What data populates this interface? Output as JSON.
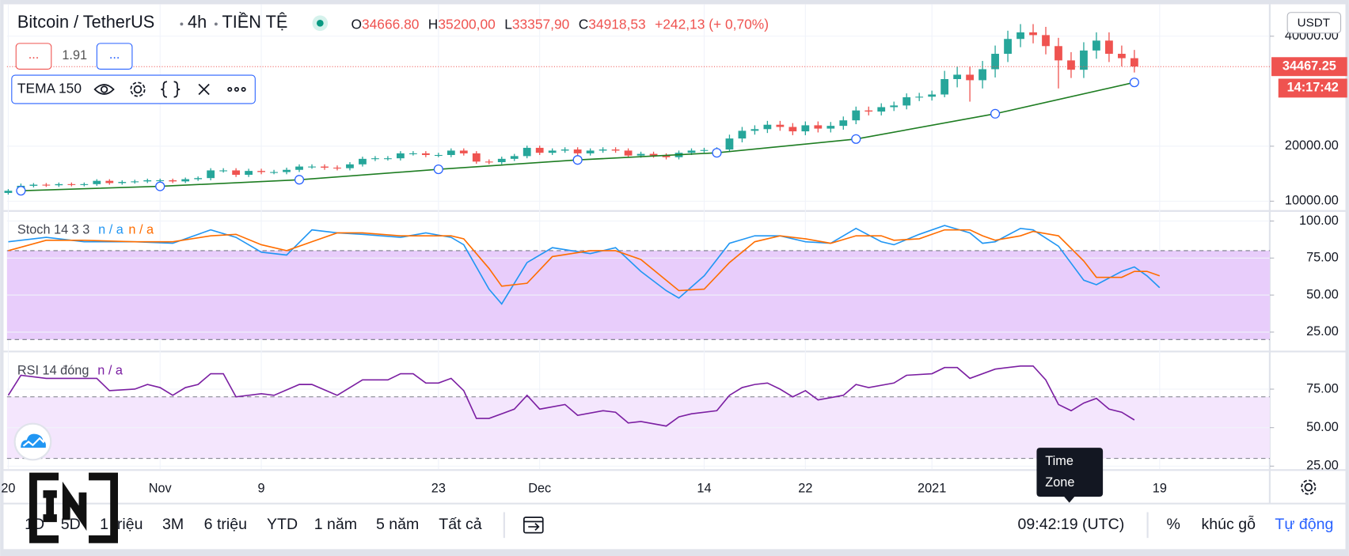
{
  "header": {
    "symbol": "Bitcoin / TetherUS",
    "interval": "4h",
    "market": "TIỀN TỆ",
    "ohlc": [
      [
        "O",
        "34666.80"
      ],
      [
        "H",
        "35200,00"
      ],
      [
        "L",
        "33357,90"
      ],
      [
        "C",
        "34918,53"
      ]
    ],
    "change": "+242,13 (+ 0,70%)"
  },
  "indicator_row": {
    "left": "...",
    "value": "1.91",
    "right": "..."
  },
  "price_axis": {
    "currency": "USDT",
    "countdown": "14:17:42"
  },
  "toolbar": {
    "ranges": [
      "1D",
      "5D",
      "1 triệu",
      "3M",
      "6 triệu",
      "YTD",
      "1 năm",
      "5 năm",
      "Tất cả"
    ],
    "time": "09:42:19 (UTC)",
    "options": [
      "%",
      "khúc gỗ",
      "Tự động"
    ]
  },
  "tooltip": [
    "Time",
    "Zone"
  ],
  "chart_data": [
    {
      "type": "candlestick",
      "up_color": "#26a69a",
      "down_color": "#ef5350",
      "grid": true,
      "xlim": [
        -0.1,
        99.7
      ],
      "xticks": [
        {
          "value": 0,
          "label": "20"
        },
        {
          "value": 12,
          "label": "Nov"
        },
        {
          "value": 20,
          "label": "9"
        },
        {
          "value": 34,
          "label": "23"
        },
        {
          "value": 42,
          "label": "Dec"
        },
        {
          "value": 55,
          "label": "14"
        },
        {
          "value": 63,
          "label": "22"
        },
        {
          "value": 73,
          "label": "2021"
        },
        {
          "value": 91,
          "label": "19"
        }
      ],
      "ylim": [
        8300,
        45800
      ],
      "yticks": [
        {
          "value": 40000,
          "label": "40000.00"
        },
        {
          "value": 20000,
          "label": "20000.00"
        },
        {
          "value": 10000,
          "label": "10000.00"
        }
      ],
      "last_price": {
        "value": 34467.25,
        "label": "34467.25"
      },
      "open": [
        11500,
        11900,
        12800,
        13000,
        12900,
        13100,
        13000,
        13100,
        13700,
        13300,
        13500,
        13600,
        13800,
        13800,
        13600,
        14000,
        14200,
        15600,
        15600,
        14800,
        15500,
        15300,
        15300,
        15700,
        16300,
        16300,
        16100,
        16000,
        16700,
        17700,
        17800,
        17800,
        18700,
        18700,
        18400,
        18400,
        19200,
        18700,
        17200,
        17100,
        17700,
        18200,
        19700,
        18800,
        19200,
        19400,
        18700,
        19200,
        19400,
        19200,
        18300,
        18600,
        18300,
        18000,
        18800,
        19200,
        19300,
        19400,
        21400,
        22800,
        23100,
        23900,
        23500,
        22700,
        23800,
        23200,
        23700,
        24700,
        26500,
        26300,
        27100,
        27400,
        28900,
        29000,
        29400,
        32200,
        33000,
        32000,
        34000,
        36800,
        39500,
        40700,
        40200,
        38200,
        35600,
        33900,
        37400,
        39200,
        36800,
        36000
      ],
      "high": [
        12200,
        13200,
        13300,
        13300,
        13400,
        13400,
        13400,
        14000,
        14000,
        13800,
        13900,
        14100,
        14100,
        14100,
        14300,
        14500,
        16000,
        16000,
        16000,
        15900,
        15900,
        15700,
        16100,
        16700,
        16700,
        16700,
        16500,
        17100,
        18100,
        18200,
        18200,
        19100,
        19100,
        19100,
        18800,
        19600,
        19600,
        19100,
        17600,
        18100,
        18600,
        20100,
        20100,
        19600,
        19800,
        19800,
        19600,
        19800,
        19800,
        19600,
        19000,
        19000,
        18700,
        19200,
        19600,
        19700,
        19800,
        22100,
        23500,
        23800,
        24600,
        24600,
        24200,
        24500,
        24500,
        24400,
        25400,
        27200,
        27200,
        27800,
        28100,
        29600,
        29700,
        30100,
        33700,
        34500,
        34500,
        35500,
        38300,
        41000,
        42200,
        42200,
        41700,
        39700,
        37100,
        38900,
        40700,
        40700,
        38300,
        37500
      ],
      "low": [
        11200,
        11600,
        12500,
        12600,
        12600,
        12700,
        12700,
        12800,
        13000,
        13000,
        13200,
        13300,
        13500,
        13300,
        13300,
        13700,
        13800,
        15200,
        14400,
        14400,
        14900,
        14900,
        14900,
        15300,
        15900,
        15700,
        15600,
        15600,
        16300,
        17300,
        17400,
        17400,
        18300,
        18000,
        18000,
        18000,
        18300,
        16800,
        16700,
        16700,
        17300,
        17800,
        18400,
        18400,
        18800,
        18300,
        18300,
        18800,
        18800,
        17900,
        17900,
        17900,
        17600,
        17600,
        18400,
        18800,
        18900,
        19000,
        20700,
        22100,
        22400,
        22800,
        22000,
        22000,
        22500,
        22500,
        23000,
        24000,
        25600,
        25600,
        26400,
        26700,
        28200,
        28300,
        28900,
        30700,
        28100,
        30500,
        32500,
        35300,
        38000,
        38700,
        36700,
        30500,
        32400,
        32400,
        35900,
        35300,
        34500,
        33400
      ],
      "close": [
        11900,
        12800,
        13000,
        12900,
        13100,
        13000,
        13100,
        13700,
        13300,
        13500,
        13600,
        13800,
        13800,
        13600,
        14000,
        14200,
        15600,
        15600,
        14800,
        15500,
        15300,
        15300,
        15700,
        16300,
        16300,
        16100,
        16000,
        16700,
        17700,
        17800,
        17800,
        18700,
        18700,
        18400,
        18400,
        19200,
        18700,
        17200,
        17100,
        17700,
        18200,
        19700,
        18800,
        19200,
        19400,
        18700,
        19200,
        19400,
        19200,
        18300,
        18600,
        18300,
        18000,
        18800,
        19200,
        19300,
        19400,
        21400,
        22800,
        23100,
        23900,
        23500,
        22700,
        23800,
        23200,
        23700,
        24700,
        26500,
        26300,
        27100,
        27400,
        28900,
        29000,
        29400,
        32200,
        33000,
        32000,
        34000,
        36800,
        39500,
        40700,
        40200,
        38200,
        35600,
        33900,
        37400,
        39200,
        36800,
        36000,
        34500
      ],
      "series": [
        {
          "name": "TEMA 150",
          "color": "#1e7d22",
          "markers": true,
          "x": [
            1,
            12,
            23,
            34,
            45,
            56,
            67,
            78,
            89
          ],
          "values": [
            11900,
            12700,
            13900,
            15800,
            17500,
            18800,
            21300,
            25900,
            31600
          ]
        }
      ]
    },
    {
      "type": "line",
      "title": "Stoch 14 3 3",
      "grid": true,
      "xlim": [
        -0.1,
        99.7
      ],
      "ylim": [
        12.5,
        106.5
      ],
      "yticks": [
        {
          "value": 100,
          "label": "100.00"
        },
        {
          "value": 75,
          "label": "75.00"
        },
        {
          "value": 50,
          "label": "50.00"
        },
        {
          "value": 25,
          "label": "25.00"
        }
      ],
      "band": [
        20,
        80
      ],
      "band_color": "#e8cdfb",
      "series": [
        {
          "label": "n / a",
          "color": "#2196f3",
          "x": [
            0,
            3,
            6,
            10,
            13,
            16,
            18,
            20,
            22,
            24,
            26,
            28,
            31,
            33,
            35,
            36,
            38,
            39,
            41,
            43,
            46,
            48,
            50,
            52,
            53,
            55,
            57,
            59,
            61,
            63,
            65,
            67,
            69,
            70,
            72,
            74,
            76,
            77,
            78,
            80,
            81,
            83,
            85,
            86,
            88,
            89,
            90,
            91
          ],
          "values": [
            86,
            89,
            86,
            86,
            85,
            94,
            89,
            79,
            77,
            94,
            92,
            91,
            89,
            92,
            89,
            84,
            54,
            44,
            72,
            82,
            78,
            82,
            66,
            53,
            48,
            63,
            85,
            90,
            90,
            86,
            85,
            95,
            86,
            84,
            91,
            97,
            92,
            85,
            86,
            95,
            94,
            83,
            60,
            57,
            66,
            69,
            63,
            55
          ]
        },
        {
          "label": "n / a",
          "color": "#ff6d00",
          "x": [
            0,
            3,
            6,
            10,
            13,
            16,
            18,
            20,
            22,
            24,
            26,
            28,
            31,
            33,
            35,
            36,
            38,
            39,
            41,
            43,
            46,
            48,
            50,
            52,
            53,
            55,
            57,
            59,
            61,
            63,
            65,
            67,
            69,
            70,
            72,
            74,
            76,
            77,
            78,
            80,
            81,
            83,
            85,
            86,
            88,
            89,
            90,
            91
          ],
          "values": [
            80,
            87,
            87,
            86,
            86,
            90,
            91,
            84,
            80,
            86,
            92,
            92,
            90,
            90,
            90,
            88,
            68,
            56,
            58,
            76,
            80,
            80,
            74,
            60,
            53,
            54,
            72,
            86,
            90,
            88,
            85,
            90,
            90,
            87,
            88,
            94,
            94,
            90,
            87,
            90,
            93,
            90,
            73,
            62,
            62,
            66,
            66,
            63
          ]
        }
      ]
    },
    {
      "type": "line",
      "title": "RSI 14 đóng",
      "grid": true,
      "xlim": [
        -0.1,
        99.7
      ],
      "ylim": [
        23,
        98.9
      ],
      "yticks": [
        {
          "value": 75,
          "label": "75.00"
        },
        {
          "value": 50,
          "label": "50.00"
        },
        {
          "value": 25,
          "label": "25.00"
        }
      ],
      "band": [
        30,
        70
      ],
      "band_color": "#f4e6fd",
      "series": [
        {
          "label": "n / a",
          "color": "#7b1fa2",
          "x": [
            0,
            1,
            3,
            7,
            8,
            10,
            11,
            12,
            13,
            14,
            15,
            16,
            17,
            18,
            20,
            21,
            23,
            24,
            26,
            28,
            30,
            31,
            32,
            33,
            34,
            35,
            36,
            37,
            38,
            40,
            41,
            42,
            44,
            45,
            47,
            48,
            49,
            50,
            52,
            53,
            54,
            56,
            57,
            58,
            59,
            60,
            61,
            62,
            63,
            64,
            66,
            67,
            68,
            70,
            71,
            73,
            74,
            75,
            76,
            78,
            80,
            81,
            82,
            83,
            84,
            85,
            86,
            87,
            88,
            89
          ],
          "values": [
            71,
            84,
            82,
            82,
            74,
            75,
            78,
            76,
            71,
            76,
            78,
            85,
            85,
            70,
            72,
            71,
            78,
            78,
            71,
            81,
            81,
            85,
            85,
            79,
            79,
            82,
            74,
            56,
            56,
            62,
            71,
            62,
            65,
            58,
            61,
            60,
            53,
            54,
            51,
            57,
            59,
            61,
            71,
            76,
            78,
            79,
            75,
            70,
            74,
            68,
            71,
            78,
            76,
            79,
            84,
            85,
            89,
            89,
            82,
            88,
            90,
            90,
            81,
            65,
            61,
            66,
            69,
            62,
            60,
            55
          ]
        }
      ]
    }
  ]
}
